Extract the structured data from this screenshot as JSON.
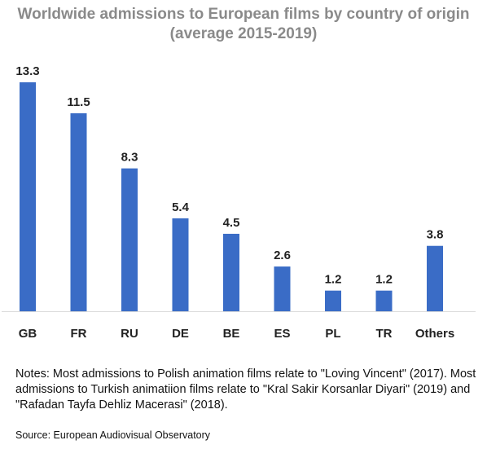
{
  "title_line1": "Worldwide admissions to European films by country of origin",
  "title_line2": "(average 2015-2019)",
  "chart_data": {
    "type": "bar",
    "categories": [
      "GB",
      "FR",
      "RU",
      "DE",
      "BE",
      "ES",
      "PL",
      "TR",
      "Others"
    ],
    "values": [
      13.3,
      11.5,
      8.3,
      5.4,
      4.5,
      2.6,
      1.2,
      1.2,
      3.8
    ],
    "value_labels": [
      "13.3",
      "11.5",
      "8.3",
      "5.4",
      "4.5",
      "2.6",
      "1.2",
      "1.2",
      "3.8"
    ],
    "bar_color": "#3a6cc6",
    "ylim": [
      0,
      13.3
    ],
    "grid": false,
    "legend": "none"
  },
  "notes": "Notes: Most admissions to Polish animation films relate to \"Loving Vincent\" (2017). Most admissions to Turkish animatiion films relate to \"Kral Sakir Korsanlar Diyari\" (2019) and \"Rafadan Tayfa Dehliz Macerasi\" (2018).",
  "source": "Source: European Audiovisual Observatory"
}
